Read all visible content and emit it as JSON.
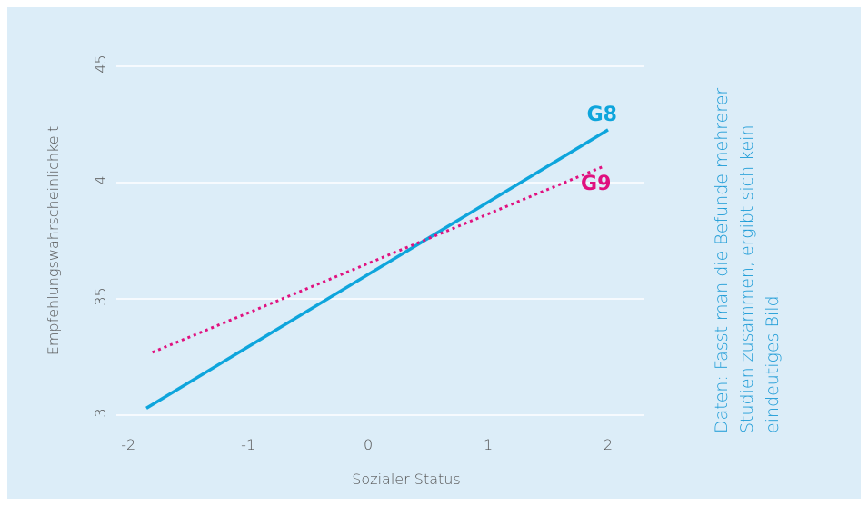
{
  "chart_data": {
    "type": "line",
    "x_label": "Sozialer Status",
    "y_label": "Empfehlungswahrscheinlichkeit",
    "series": [
      {
        "name": "G8",
        "color": "#0ea5dc",
        "style": "solid",
        "x": [
          -1.85,
          2
        ],
        "values": [
          0.303,
          0.4227
        ]
      },
      {
        "name": "G9",
        "color": "#e0117f",
        "style": "dotted",
        "x": [
          -1.8,
          1.95
        ],
        "values": [
          0.327,
          0.4067
        ]
      }
    ],
    "xlim": [
      -2.1,
      2.3
    ],
    "xticks": [
      -2,
      -1,
      0,
      1,
      2
    ],
    "ylim": [
      0.3,
      0.45
    ],
    "yticks": [
      {
        "value": 0.3,
        "label": ".3"
      },
      {
        "value": 0.35,
        "label": ".35"
      },
      {
        "value": 0.4,
        "label": ".4"
      },
      {
        "value": 0.45,
        "label": ".45"
      }
    ],
    "grid": true,
    "annotation_lines": [
      "Daten: Fasst man die Befunde mehrerer",
      "Studien zusammen, ergibt sich kein",
      "eindeutiges Bild."
    ]
  }
}
